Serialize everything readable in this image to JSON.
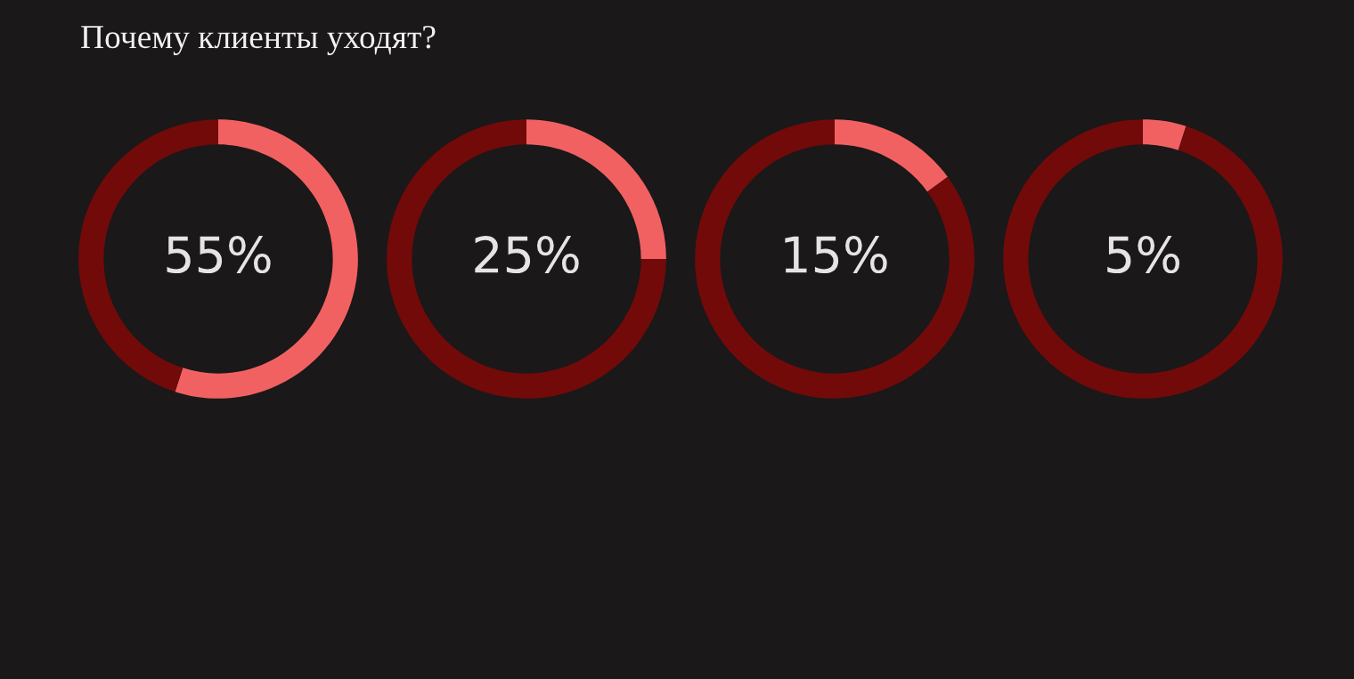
{
  "chart_data": [
    {
      "type": "donut",
      "title": "Почему клиенты уходят?",
      "categories": [
        null,
        null
      ],
      "values": [
        55,
        45
      ],
      "colors": [
        "#f26161",
        "#720a0a"
      ],
      "value_labels": [
        "55%",
        null
      ]
    },
    {
      "type": "donut",
      "categories": [
        null,
        null
      ],
      "values": [
        25,
        75
      ],
      "colors": [
        "#f26161",
        "#720a0a"
      ],
      "value_labels": [
        "25%",
        null
      ]
    },
    {
      "type": "donut",
      "categories": [
        null,
        null
      ],
      "values": [
        15,
        85
      ],
      "colors": [
        "#f26161",
        "#720a0a"
      ],
      "value_labels": [
        "15%",
        null
      ]
    },
    {
      "type": "donut",
      "categories": [
        null,
        null
      ],
      "values": [
        5,
        95
      ],
      "colors": [
        "#f26161",
        "#720a0a"
      ],
      "value_labels": [
        "5%",
        null
      ]
    }
  ]
}
